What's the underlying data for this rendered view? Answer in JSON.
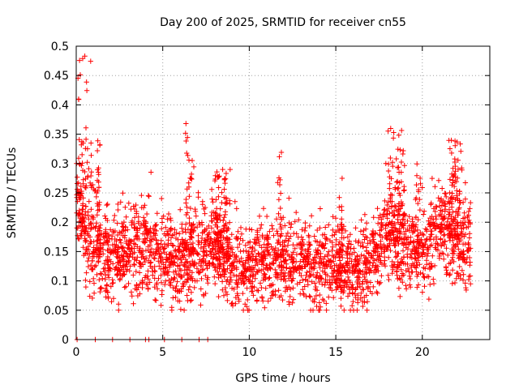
{
  "chart_data": {
    "type": "scatter",
    "title": "Day 200 of 2025, SRMTID for receiver cn55",
    "xlabel": "GPS time / hours",
    "ylabel": "SRMTID / TECUs",
    "xlim": [
      0,
      23.9
    ],
    "ylim": [
      0,
      0.5
    ],
    "xticks": [
      0,
      5,
      10,
      15,
      20
    ],
    "xtick_labels": [
      "0",
      "5",
      "10",
      "15",
      "20"
    ],
    "yticks": [
      0,
      0.05,
      0.1,
      0.15,
      0.2,
      0.25,
      0.3,
      0.35,
      0.4,
      0.45,
      0.5
    ],
    "ytick_labels": [
      "0",
      "0.05",
      "0.1",
      "0.15",
      "0.2",
      "0.25",
      "0.3",
      "0.35",
      "0.4",
      "0.45",
      "0.5"
    ],
    "grid": true,
    "marker": "+",
    "color": "#ff0000",
    "series": [
      {
        "name": "SRMTID",
        "x_range": [
          0,
          22.8
        ],
        "points_approx": 2600,
        "baseline_profile": [
          [
            0.0,
            0.24
          ],
          [
            0.5,
            0.17
          ],
          [
            1.0,
            0.15
          ],
          [
            2.0,
            0.13
          ],
          [
            3.0,
            0.15
          ],
          [
            4.0,
            0.15
          ],
          [
            5.0,
            0.14
          ],
          [
            6.0,
            0.13
          ],
          [
            7.0,
            0.15
          ],
          [
            8.0,
            0.16
          ],
          [
            9.0,
            0.13
          ],
          [
            10.0,
            0.12
          ],
          [
            11.0,
            0.14
          ],
          [
            12.0,
            0.13
          ],
          [
            13.0,
            0.13
          ],
          [
            14.0,
            0.12
          ],
          [
            15.0,
            0.12
          ],
          [
            16.0,
            0.11
          ],
          [
            17.0,
            0.13
          ],
          [
            18.0,
            0.17
          ],
          [
            19.0,
            0.16
          ],
          [
            20.0,
            0.14
          ],
          [
            21.0,
            0.19
          ],
          [
            22.0,
            0.17
          ],
          [
            22.8,
            0.16
          ]
        ],
        "bursts": [
          {
            "x": [
              0.1,
              0.9
            ],
            "y_max": 0.495
          },
          {
            "x": [
              1.0,
              1.4
            ],
            "y_max": 0.34
          },
          {
            "x": [
              6.3,
              6.8
            ],
            "y_max": 0.37
          },
          {
            "x": [
              8.0,
              8.9
            ],
            "y_max": 0.29
          },
          {
            "x": [
              11.6,
              11.9
            ],
            "y_max": 0.32
          },
          {
            "x": [
              15.2,
              15.4
            ],
            "y_max": 0.28
          },
          {
            "x": [
              17.9,
              19.0
            ],
            "y_max": 0.36
          },
          {
            "x": [
              19.6,
              19.9
            ],
            "y_max": 0.3
          },
          {
            "x": [
              21.5,
              22.3
            ],
            "y_max": 0.34
          }
        ],
        "zero_points_x": [
          0.05,
          1.1,
          2.1,
          3.1,
          4.0,
          4.2,
          5.1,
          6.1,
          7.1,
          7.6
        ]
      }
    ]
  }
}
